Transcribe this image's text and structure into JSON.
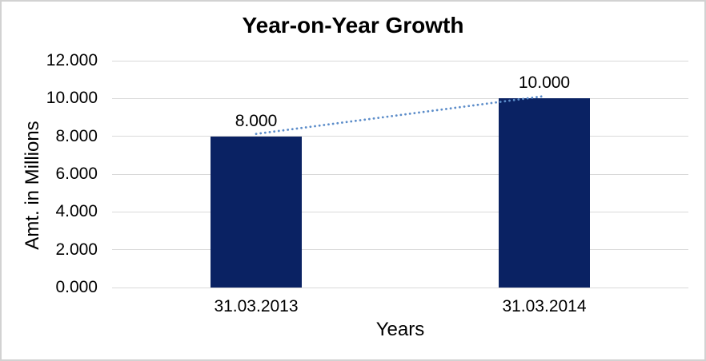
{
  "chart_data": {
    "type": "bar",
    "title": "Year-on-Year Growth",
    "categories": [
      "31.03.2013",
      "31.03.2014"
    ],
    "values": [
      8.0,
      10.0
    ],
    "value_labels": [
      "8.000",
      "10.000"
    ],
    "xlabel": "Years",
    "ylabel": "Amt. in Millions",
    "ylim": [
      0,
      12
    ],
    "ytick_step": 2,
    "ytick_labels": [
      "0.000",
      "2.000",
      "4.000",
      "6.000",
      "8.000",
      "10.000",
      "12.000"
    ],
    "grid": true,
    "legend": "none",
    "trendline": {
      "style": "dotted",
      "from_value": 8.0,
      "to_value": 10.0
    },
    "colors": {
      "bar": "#0a2263",
      "trend": "#5b8cc9",
      "gridline": "#d9d9d9",
      "text": "#000000",
      "frame_border": "#d2d2d2",
      "background": "#ffffff"
    }
  }
}
